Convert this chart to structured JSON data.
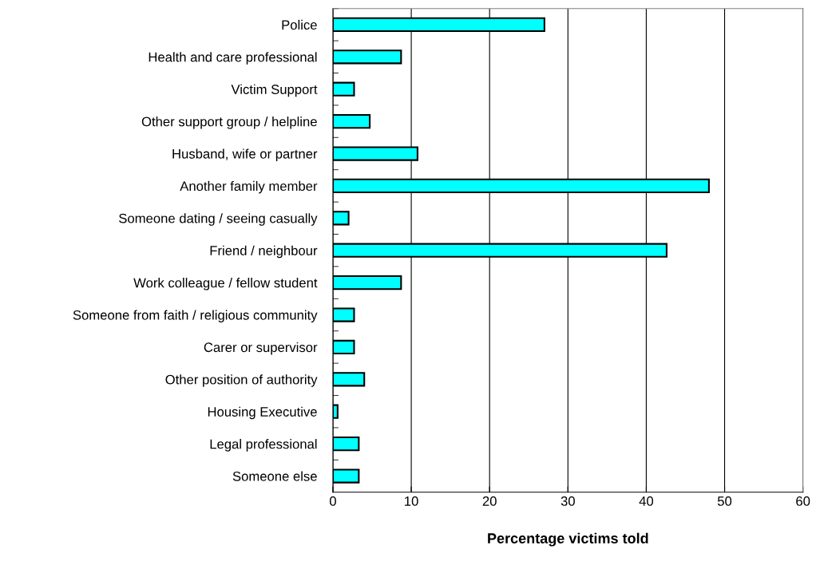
{
  "chart_data": {
    "type": "bar",
    "orientation": "horizontal",
    "xlabel": "Percentage victims told",
    "categories": [
      "Police",
      "Health and care professional",
      "Victim Support",
      "Other support group / helpline",
      "Husband, wife or partner",
      "Another family member",
      "Someone dating / seeing casually",
      "Friend / neighbour",
      "Work colleague / fellow student",
      "Someone from faith / religious community",
      "Carer or supervisor",
      "Other position of authority",
      "Housing Executive",
      "Legal professional",
      "Someone else"
    ],
    "values": [
      27.0,
      8.7,
      2.7,
      4.7,
      10.8,
      48.0,
      2.0,
      42.6,
      8.7,
      2.7,
      2.7,
      4.0,
      0.6,
      3.3,
      3.3
    ],
    "color": "#00ffff",
    "xlim": [
      0,
      60
    ],
    "xticks": [
      0,
      10,
      20,
      30,
      40,
      50,
      60
    ],
    "grid": "x",
    "legend": false
  }
}
